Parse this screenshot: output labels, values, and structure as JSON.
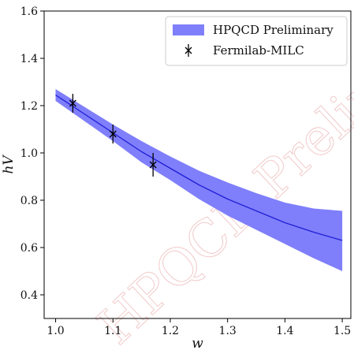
{
  "chart_data": {
    "type": "line",
    "xlabel": "w",
    "ylabel": "hV",
    "xlim": [
      0.98,
      1.515
    ],
    "ylim": [
      0.3,
      1.6
    ],
    "xticks": [
      "1.0",
      "1.1",
      "1.2",
      "1.3",
      "1.4",
      "1.5"
    ],
    "yticks": [
      "0.4",
      "0.6",
      "0.8",
      "1.0",
      "1.2",
      "1.4",
      "1.6"
    ],
    "legend_position": "top-right",
    "band": {
      "name": "HPQCD Preliminary",
      "color": "#7f7ffb",
      "line_color": "#1f1fd6",
      "x": [
        1.0,
        1.05,
        1.1,
        1.15,
        1.2,
        1.25,
        1.3,
        1.35,
        1.4,
        1.45,
        1.5
      ],
      "center": [
        1.245,
        1.165,
        1.085,
        1.005,
        0.935,
        0.865,
        0.805,
        0.755,
        0.705,
        0.665,
        0.63
      ],
      "upper": [
        1.27,
        1.195,
        1.12,
        1.05,
        0.985,
        0.925,
        0.875,
        0.83,
        0.79,
        0.765,
        0.755
      ],
      "lower": [
        1.22,
        1.135,
        1.05,
        0.96,
        0.885,
        0.805,
        0.735,
        0.675,
        0.615,
        0.555,
        0.5
      ]
    },
    "points": {
      "name": "Fermilab-MILC",
      "marker": "x",
      "color": "#000000",
      "x": [
        1.03,
        1.1,
        1.17
      ],
      "y": [
        1.21,
        1.08,
        0.95
      ],
      "err": [
        0.04,
        0.04,
        0.05
      ]
    }
  },
  "watermark": "HPQCD Preliminary"
}
